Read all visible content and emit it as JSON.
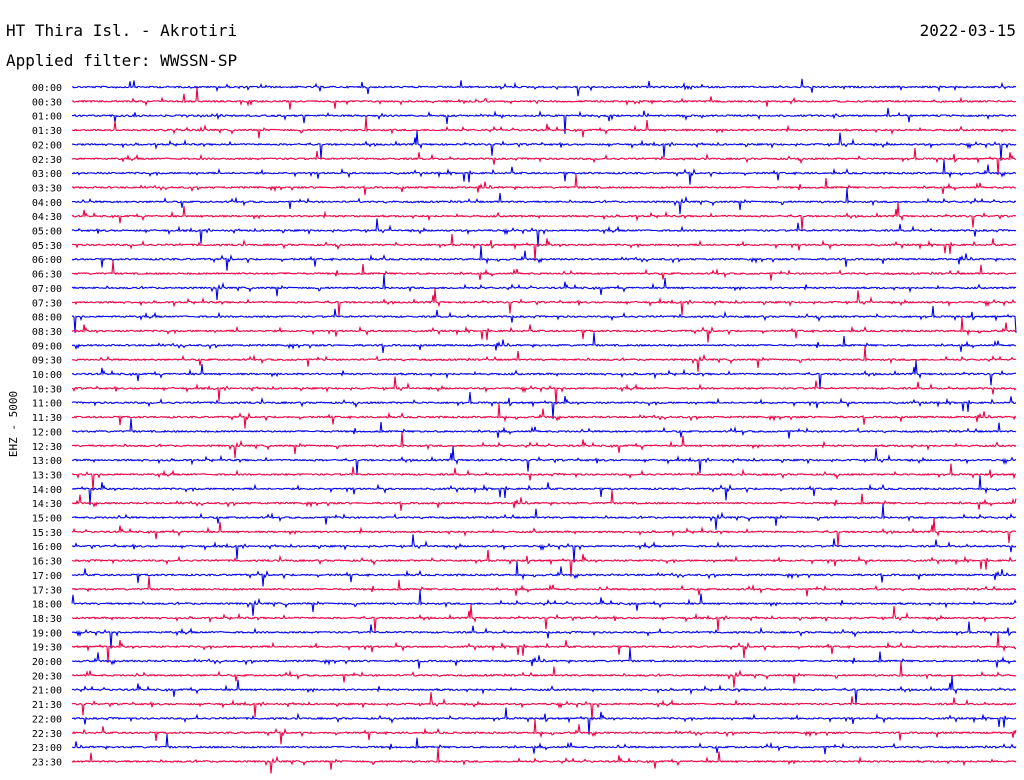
{
  "station": "HT Thira Isl. - Akrotiri",
  "date": "2022-03-15",
  "filter_label": "Applied filter: WWSSN-SP",
  "channel_label": "EHZ - 5000",
  "colors": {
    "even_row": "#0000ee",
    "odd_row": "#ee0044",
    "text": "#000000",
    "background": "#ffffff"
  },
  "chart_data": {
    "type": "line",
    "title": "HT Thira Isl. - Akrotiri",
    "subtitle": "Applied filter: WWSSN-SP",
    "ylabel": "EHZ - 5000",
    "xlabel": "",
    "row_labels": [
      "00:00",
      "00:30",
      "01:00",
      "01:30",
      "02:00",
      "02:30",
      "03:00",
      "03:30",
      "04:00",
      "04:30",
      "05:00",
      "05:30",
      "06:00",
      "06:30",
      "07:00",
      "07:30",
      "08:00",
      "08:30",
      "09:00",
      "09:30",
      "10:00",
      "10:30",
      "11:00",
      "11:30",
      "12:00",
      "12:30",
      "13:00",
      "13:30",
      "14:00",
      "14:30",
      "15:00",
      "15:30",
      "16:00",
      "16:30",
      "17:00",
      "17:30",
      "18:00",
      "18:30",
      "19:00",
      "19:30",
      "20:00",
      "20:30",
      "21:00",
      "21:30",
      "22:00",
      "22:30",
      "23:00",
      "23:30"
    ],
    "series": [
      {
        "color": "#0000ee",
        "rows": "even"
      },
      {
        "color": "#ee0044",
        "rows": "odd"
      }
    ],
    "grid": false,
    "legend": "none"
  }
}
